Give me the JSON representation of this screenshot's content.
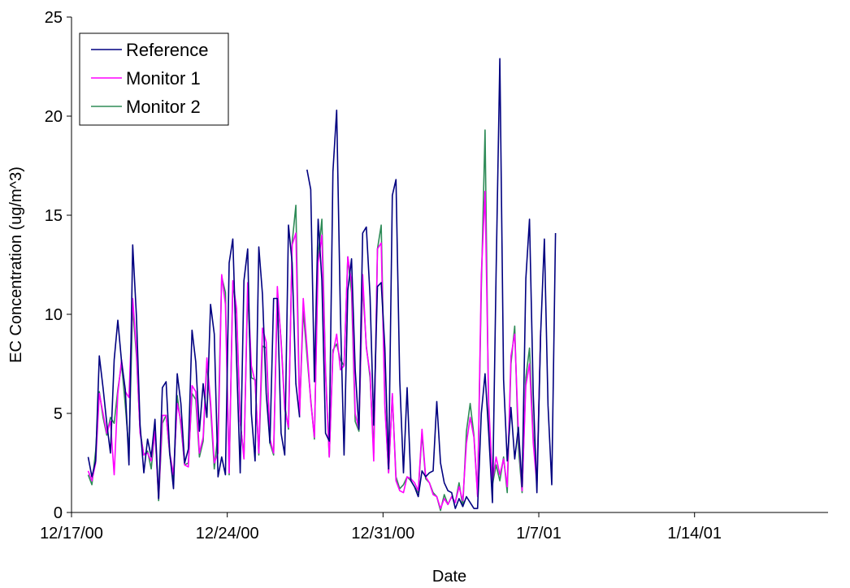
{
  "chart_data": {
    "type": "line",
    "title": "",
    "xlabel": "Date",
    "ylabel": "EC Concentration (ug/m^3)",
    "ylim": [
      0,
      25
    ],
    "yticks": [
      "0",
      "5",
      "10",
      "15",
      "20",
      "25"
    ],
    "xlim": [
      "2000-12-17",
      "2001-01-20"
    ],
    "xticks": [
      {
        "date": "2000-12-17",
        "label": "12/17/00"
      },
      {
        "date": "2000-12-24",
        "label": "12/24/00"
      },
      {
        "date": "2000-12-31",
        "label": "12/31/00"
      },
      {
        "date": "2001-01-07",
        "label": "1/7/01"
      },
      {
        "date": "2001-01-14",
        "label": "1/14/01"
      }
    ],
    "grid": false,
    "legend": "top-left",
    "x_start": "2000-12-17T18:00",
    "x_step_hours": 4,
    "series": [
      {
        "name": "Reference",
        "color": "#000080",
        "values": [
          2.8,
          1.8,
          2.6,
          7.9,
          6.3,
          4.5,
          3.0,
          7.7,
          9.7,
          7.6,
          6.2,
          2.4,
          13.5,
          9.9,
          4.4,
          2.0,
          3.7,
          2.8,
          4.7,
          0.7,
          6.3,
          6.6,
          3.0,
          1.2,
          7.0,
          5.5,
          2.5,
          3.2,
          9.2,
          7.6,
          4.1,
          6.5,
          4.8,
          10.5,
          9.0,
          1.8,
          2.8,
          1.9,
          12.6,
          13.8,
          7.7,
          2.0,
          11.7,
          13.3,
          5.0,
          2.6,
          13.4,
          11.0,
          6.0,
          3.5,
          10.8,
          10.8,
          4.0,
          2.9,
          14.5,
          12.6,
          6.5,
          4.8,
          null,
          17.3,
          16.3,
          6.6,
          14.8,
          11.7,
          4.0,
          3.6,
          17.2,
          20.3,
          10.0,
          2.9,
          11.2,
          12.8,
          7.2,
          4.2,
          14.1,
          14.4,
          10.9,
          4.4,
          11.4,
          11.6,
          8.3,
          2.2,
          16.0,
          16.8,
          6.7,
          2.0,
          6.3,
          1.6,
          1.3,
          0.8,
          2.1,
          1.8,
          2.0,
          2.1,
          5.6,
          2.5,
          1.5,
          1.1,
          1.0,
          0.2,
          0.7,
          0.3,
          0.8,
          0.5,
          0.2,
          0.2,
          5.0,
          7.0,
          4.0,
          0.5,
          12.1,
          22.9,
          6.7,
          2.6,
          5.3,
          2.7,
          4.3,
          1.3,
          11.8,
          14.8,
          6.0,
          1.0,
          9.0,
          13.8,
          5.4,
          1.4,
          14.1
        ]
      },
      {
        "name": "Monitor 1",
        "color": "#FF00FF",
        "values": [
          2.1,
          1.6,
          2.5,
          6.0,
          5.0,
          4.0,
          4.6,
          1.9,
          6.0,
          7.7,
          6.1,
          5.8,
          10.8,
          8.2,
          4.0,
          2.9,
          3.0,
          2.6,
          4.1,
          0.7,
          4.9,
          4.9,
          3.0,
          1.9,
          5.5,
          4.6,
          2.4,
          2.3,
          6.4,
          6.1,
          3.0,
          3.8,
          7.8,
          5.6,
          2.5,
          3.0,
          12.0,
          10.5,
          2.0,
          11.7,
          10.3,
          4.6,
          2.7,
          11.6,
          7.4,
          6.6,
          3.0,
          9.3,
          8.6,
          3.7,
          3.0,
          11.4,
          8.6,
          5.2,
          4.3,
          13.5,
          14.1,
          4.9,
          10.8,
          8.3,
          5.6,
          3.8,
          12.6,
          14.0,
          7.0,
          2.8,
          8.0,
          9.0,
          7.2,
          7.4,
          12.9,
          11.6,
          5.0,
          4.2,
          12.0,
          8.3,
          7.0,
          2.6,
          13.3,
          13.6,
          5.3,
          2.0,
          6.0,
          1.6,
          1.1,
          1.0,
          1.8,
          1.7,
          1.5,
          1.1,
          4.2,
          1.8,
          1.5,
          0.9,
          0.8,
          0.2,
          0.7,
          0.4,
          0.8,
          0.5,
          1.3,
          0.6,
          3.5,
          4.8,
          3.8,
          0.8,
          12.0,
          16.2,
          5.5,
          1.6,
          2.8,
          1.9,
          2.7,
          1.3,
          7.9,
          9.0,
          4.1,
          1.1,
          6.4,
          7.5,
          3.5,
          1.4,
          9.2
        ]
      },
      {
        "name": "Monitor 2",
        "color": "#2E8B57",
        "values": [
          1.9,
          1.4,
          3.1,
          6.1,
          4.8,
          3.9,
          4.8,
          4.5,
          6.2,
          7.5,
          5.4,
          3.1,
          10.4,
          7.9,
          4.1,
          2.9,
          3.1,
          2.2,
          4.2,
          0.6,
          4.5,
          4.9,
          2.9,
          1.6,
          5.9,
          4.4,
          2.4,
          2.5,
          6.0,
          5.7,
          2.8,
          3.6,
          7.6,
          5.3,
          2.2,
          4.0,
          11.9,
          11.1,
          1.9,
          11.6,
          10.0,
          4.6,
          2.8,
          11.2,
          6.8,
          6.7,
          2.9,
          8.4,
          8.3,
          3.5,
          2.9,
          11.0,
          8.7,
          5.4,
          4.2,
          13.6,
          15.5,
          5.1,
          10.2,
          7.9,
          5.7,
          3.7,
          13.0,
          14.8,
          7.2,
          2.8,
          8.2,
          8.5,
          7.7,
          7.4,
          12.9,
          11.1,
          4.6,
          4.1,
          11.5,
          8.4,
          6.8,
          3.0,
          13.3,
          14.5,
          5.5,
          2.0,
          5.9,
          1.8,
          1.2,
          1.4,
          1.8,
          1.6,
          1.3,
          1.0,
          4.0,
          1.7,
          1.5,
          1.0,
          0.8,
          0.1,
          0.9,
          0.4,
          0.8,
          0.5,
          1.5,
          0.3,
          4.1,
          5.5,
          3.9,
          0.9,
          11.3,
          19.3,
          4.5,
          1.4,
          2.4,
          1.6,
          2.8,
          1.0,
          7.5,
          9.4,
          3.3,
          1.0,
          6.8,
          8.3,
          3.9,
          1.5,
          9.0
        ]
      }
    ]
  }
}
